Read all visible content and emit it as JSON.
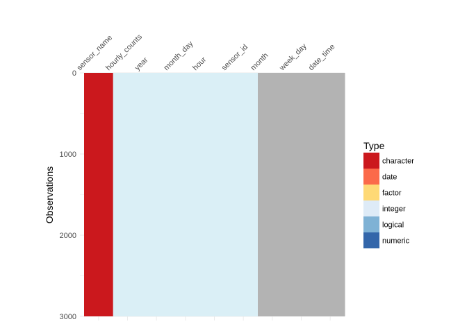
{
  "chart_data": {
    "type": "heatmap",
    "title": "",
    "xlabel": "",
    "ylabel": "Observations",
    "x_tick_labels": [
      "sensor_name",
      "hourly_counts",
      "year",
      "month_day",
      "hour",
      "sensor_id",
      "month",
      "week_day",
      "date_time"
    ],
    "y_ticks": [
      0,
      1000,
      2000,
      3000
    ],
    "y_tick_labels": [
      "0",
      "1000",
      "2000",
      "3000"
    ],
    "ylim": [
      0,
      3000
    ],
    "y_reversed": true,
    "grid": true,
    "columns": [
      {
        "name": "sensor_name",
        "type": "character"
      },
      {
        "name": "hourly_counts",
        "type": "integer"
      },
      {
        "name": "year",
        "type": "integer"
      },
      {
        "name": "month_day",
        "type": "integer"
      },
      {
        "name": "hour",
        "type": "integer"
      },
      {
        "name": "sensor_id",
        "type": "integer"
      },
      {
        "name": "month",
        "type": "other"
      },
      {
        "name": "week_day",
        "type": "other"
      },
      {
        "name": "date_time",
        "type": "other"
      }
    ],
    "legend": {
      "title": "Type",
      "position": "right",
      "items": [
        {
          "label": "character",
          "color": "#cb181d"
        },
        {
          "label": "date",
          "color": "#fb6a4a"
        },
        {
          "label": "factor",
          "color": "#fed976"
        },
        {
          "label": "integer",
          "color": "#deebf7"
        },
        {
          "label": "logical",
          "color": "#7fb2d5"
        },
        {
          "label": "numeric",
          "color": "#3366aa"
        }
      ]
    },
    "colors": {
      "character": "#cb181d",
      "integer": "#daeff6",
      "other": "#b3b3b3"
    }
  }
}
